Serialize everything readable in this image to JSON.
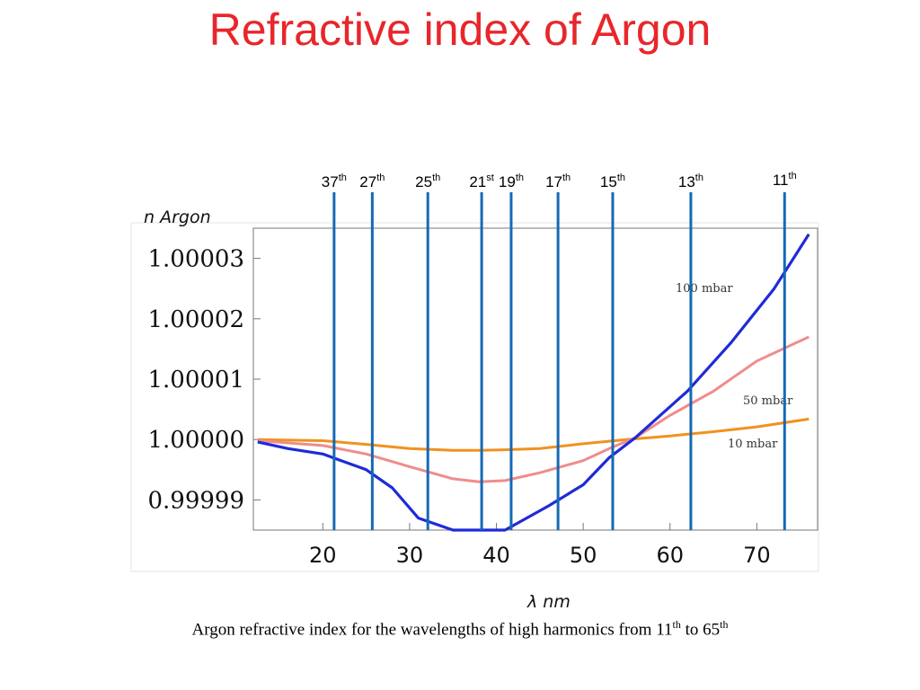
{
  "slide": {
    "title": "Refractive index of Argon",
    "caption_main": "Argon refractive index for the wavelengths of high harmonics from 11",
    "caption_sup1": "th",
    "caption_mid": " to 65",
    "caption_sup2": "th"
  },
  "chart_data": {
    "type": "line",
    "title": "",
    "xlabel": "λ nm",
    "ylabel": "n Argon",
    "xlim": [
      12,
      77
    ],
    "ylim": [
      0.999985,
      1.000035
    ],
    "x_ticks": [
      20,
      30,
      40,
      50,
      60,
      70
    ],
    "y_ticks": [
      0.99999,
      1.0,
      1.00001,
      1.00002,
      1.00003
    ],
    "y_tick_labels": [
      "0.99999",
      "1.00000",
      "1.00001",
      "1.00002",
      "1.00003"
    ],
    "grid": false,
    "series": [
      {
        "name": "100 mbar",
        "color": "#1f2bd6",
        "x": [
          12.5,
          16,
          20,
          25,
          28,
          31,
          35,
          41,
          46,
          50,
          53,
          56,
          62,
          67,
          72,
          76
        ],
        "y": [
          0.9999996,
          0.9999985,
          0.9999976,
          0.999995,
          0.999992,
          0.999987,
          0.999985,
          0.999985,
          0.999989,
          0.9999925,
          0.999997,
          1.0000003,
          1.000008,
          1.000016,
          1.000025,
          1.000034
        ]
      },
      {
        "name": "50 mbar",
        "color": "#f08c8c",
        "x": [
          12.5,
          20,
          25,
          30,
          35,
          38,
          41,
          45,
          50,
          53,
          56,
          60,
          65,
          70,
          76
        ],
        "y": [
          0.9999998,
          0.999999,
          0.9999976,
          0.9999955,
          0.9999935,
          0.999993,
          0.9999932,
          0.9999945,
          0.9999965,
          0.9999985,
          1.0000003,
          1.000004,
          1.000008,
          1.000013,
          1.000017
        ]
      },
      {
        "name": "10 mbar",
        "color": "#f0921f",
        "x": [
          12.5,
          20,
          25,
          30,
          35,
          38,
          41,
          45,
          50,
          55,
          60,
          65,
          70,
          76
        ],
        "y": [
          1.0,
          0.9999998,
          0.9999992,
          0.9999985,
          0.9999982,
          0.9999982,
          0.9999983,
          0.9999985,
          0.9999993,
          1.0,
          1.0000006,
          1.0000013,
          1.0000021,
          1.0000034
        ]
      }
    ],
    "harmonic_lines": {
      "color": "#1569b5",
      "items": [
        {
          "num": "37",
          "sup": "th",
          "x": 21.3
        },
        {
          "num": "27",
          "sup": "th",
          "x": 25.7
        },
        {
          "num": "25",
          "sup": "th",
          "x": 32.1
        },
        {
          "num": "21",
          "sup": "st",
          "x": 38.3
        },
        {
          "num": "19",
          "sup": "th",
          "x": 41.7
        },
        {
          "num": "17",
          "sup": "th",
          "x": 47.1
        },
        {
          "num": "15",
          "sup": "th",
          "x": 53.4
        },
        {
          "num": "13",
          "sup": "th",
          "x": 62.4
        },
        {
          "num": "11",
          "sup": "th",
          "x": 73.2
        }
      ]
    }
  }
}
